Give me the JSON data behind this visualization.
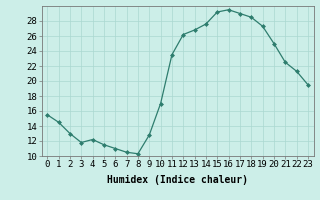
{
  "x": [
    0,
    1,
    2,
    3,
    4,
    5,
    6,
    7,
    8,
    9,
    10,
    11,
    12,
    13,
    14,
    15,
    16,
    17,
    18,
    19,
    20,
    21,
    22,
    23
  ],
  "y": [
    15.5,
    14.5,
    13.0,
    11.8,
    12.2,
    11.5,
    11.0,
    10.5,
    10.3,
    12.8,
    17.0,
    23.5,
    26.2,
    26.8,
    27.6,
    29.2,
    29.5,
    29.0,
    28.5,
    27.3,
    25.0,
    22.5,
    21.3,
    19.5
  ],
  "line_color": "#2e7d6e",
  "marker": "D",
  "marker_size": 2,
  "background_color": "#cceee8",
  "grid_color": "#aad8d0",
  "xlabel": "Humidex (Indice chaleur)",
  "xlim": [
    -0.5,
    23.5
  ],
  "ylim": [
    10,
    30
  ],
  "yticks": [
    10,
    12,
    14,
    16,
    18,
    20,
    22,
    24,
    26,
    28
  ],
  "xticks": [
    0,
    1,
    2,
    3,
    4,
    5,
    6,
    7,
    8,
    9,
    10,
    11,
    12,
    13,
    14,
    15,
    16,
    17,
    18,
    19,
    20,
    21,
    22,
    23
  ],
  "xlabel_fontsize": 7,
  "tick_fontsize": 6.5
}
